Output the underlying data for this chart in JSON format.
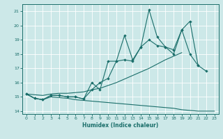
{
  "xlabel": "Humidex (Indice chaleur)",
  "bg_color": "#cce8e8",
  "line_color": "#1a6e6a",
  "grid_color": "#ffffff",
  "xlim": [
    -0.5,
    23.5
  ],
  "ylim": [
    13.8,
    21.5
  ],
  "xticks": [
    0,
    1,
    2,
    3,
    4,
    5,
    6,
    7,
    8,
    9,
    10,
    11,
    12,
    13,
    14,
    15,
    16,
    17,
    18,
    19,
    20,
    21,
    22,
    23
  ],
  "yticks": [
    14,
    15,
    16,
    17,
    18,
    19,
    20,
    21
  ],
  "hours": [
    0,
    1,
    2,
    3,
    4,
    5,
    6,
    7,
    8,
    9,
    10,
    11,
    12,
    13,
    14,
    15,
    16,
    17,
    18,
    19,
    20,
    21,
    22,
    23
  ],
  "curve_top": [
    15.2,
    14.9,
    14.8,
    15.1,
    15.1,
    15.0,
    15.0,
    14.85,
    16.0,
    15.5,
    17.5,
    17.5,
    19.3,
    17.6,
    18.5,
    21.1,
    19.2,
    18.5,
    18.3,
    19.7,
    18.0,
    17.2,
    null,
    null
  ],
  "curve_mid": [
    15.2,
    14.9,
    14.8,
    15.1,
    15.1,
    15.0,
    15.0,
    14.85,
    15.5,
    16.0,
    16.3,
    17.5,
    17.6,
    17.5,
    18.5,
    19.0,
    18.6,
    18.5,
    18.0,
    19.7,
    20.3,
    17.2,
    16.8,
    null
  ],
  "curve_trend": [
    15.2,
    15.15,
    15.1,
    15.2,
    15.25,
    15.25,
    15.3,
    15.35,
    15.5,
    15.6,
    15.8,
    16.0,
    16.25,
    16.5,
    16.75,
    17.0,
    17.3,
    17.6,
    17.85,
    18.1,
    null,
    null,
    null,
    null
  ],
  "curve_min": [
    15.2,
    14.9,
    14.8,
    15.0,
    14.95,
    14.9,
    14.8,
    14.75,
    14.7,
    14.65,
    14.6,
    14.55,
    14.5,
    14.45,
    14.4,
    14.35,
    14.3,
    14.25,
    14.2,
    14.1,
    14.05,
    14.0,
    14.0,
    14.0
  ]
}
